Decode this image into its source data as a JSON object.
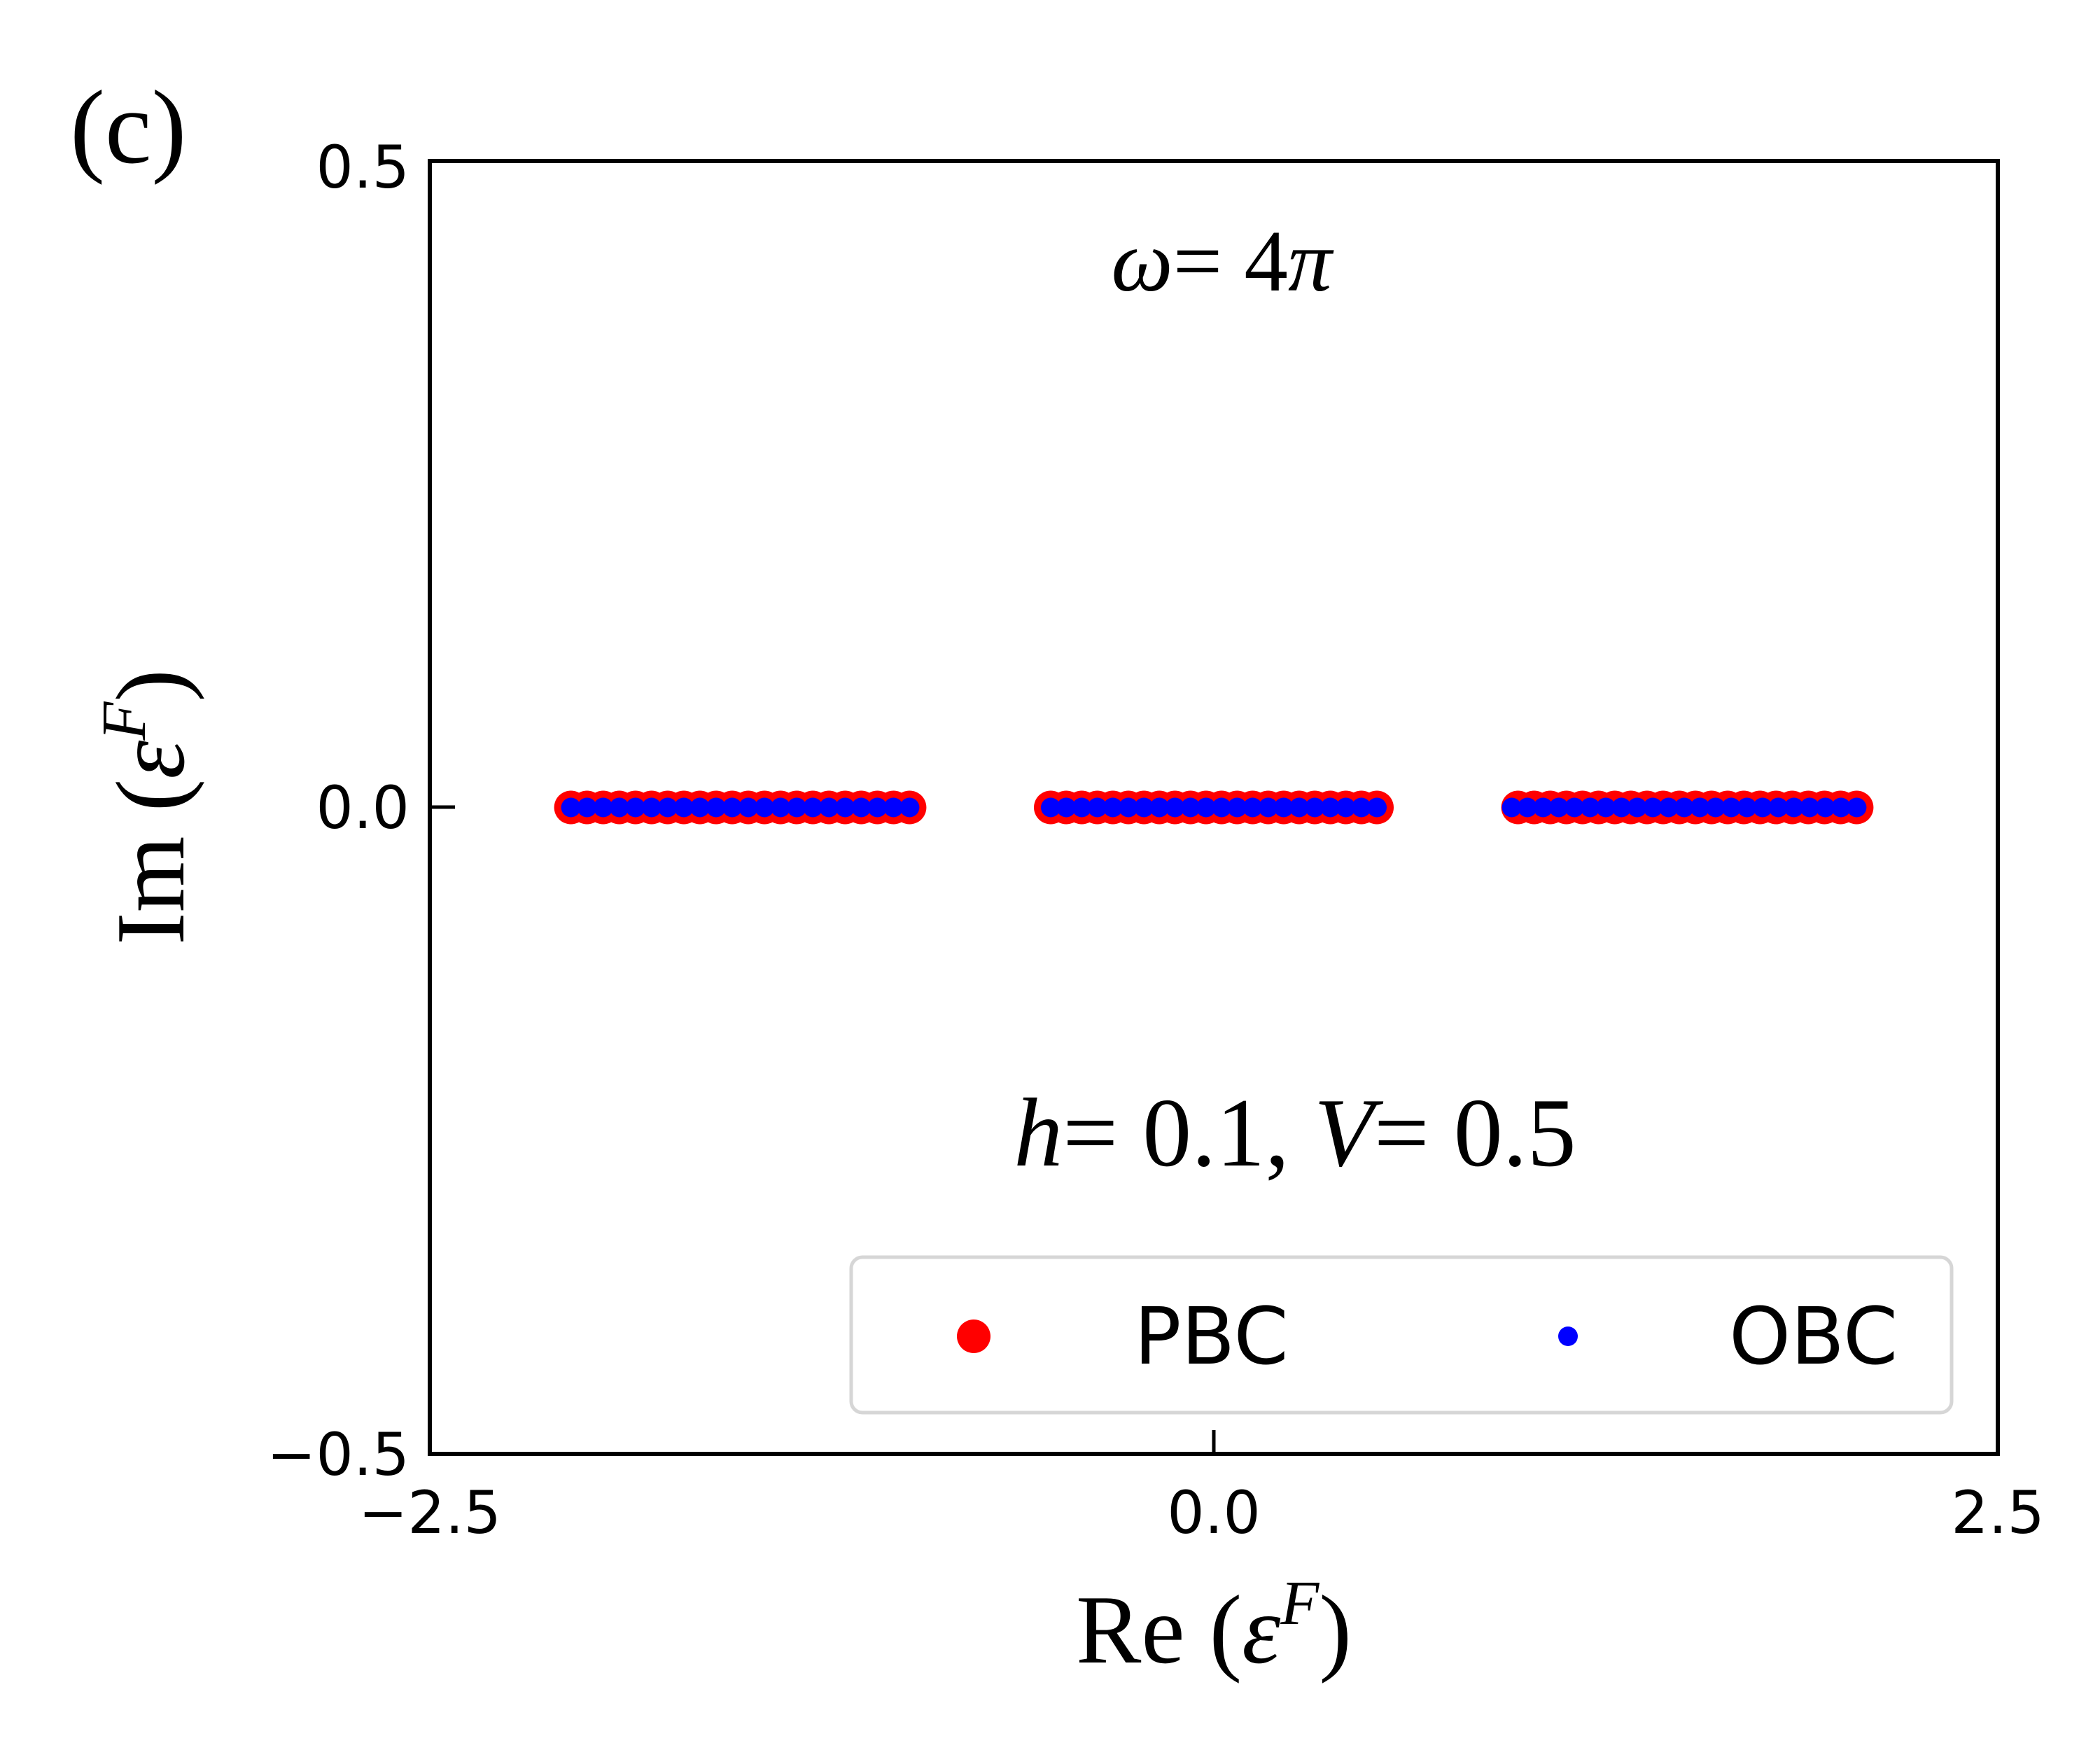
{
  "panel_label": "(c)",
  "chart_data": {
    "type": "scatter",
    "xlabel": {
      "main": "Re",
      "symbol": "ε",
      "superscript": "F"
    },
    "ylabel": {
      "main": "Im",
      "symbol": "ε",
      "superscript": "F"
    },
    "xlim": [
      -2.5,
      2.5
    ],
    "ylim": [
      -0.5,
      0.5
    ],
    "xticks": [
      -2.5,
      0.0,
      2.5
    ],
    "xtick_labels": [
      "−2.5",
      "0.0",
      "2.5"
    ],
    "yticks": [
      -0.5,
      0.0,
      0.5
    ],
    "ytick_labels": [
      "−0.5",
      "0.0",
      "0.5"
    ],
    "grid": false,
    "legend_position": "lower-right",
    "annotations": {
      "omega": {
        "var": "ω",
        "rest": "= 4",
        "tail": "π"
      },
      "params": {
        "v1": "h",
        "eq1": "= 0.1, ",
        "v2": "V",
        "eq2": "= 0.5"
      }
    },
    "series": [
      {
        "name": "PBC",
        "color": "#ff0000",
        "marker": "large-dot",
        "bands": [
          {
            "x_start": -2.05,
            "x_end": -0.97,
            "count": 22
          },
          {
            "x_start": -0.52,
            "x_end": 0.52,
            "count": 22
          },
          {
            "x_start": 0.97,
            "x_end": 2.05,
            "count": 22
          }
        ],
        "y": 0.0
      },
      {
        "name": "OBC",
        "color": "#0000ff",
        "marker": "small-dot",
        "bands": [
          {
            "x_start": -2.05,
            "x_end": -0.97,
            "count": 22
          },
          {
            "x_start": -0.52,
            "x_end": 0.52,
            "count": 22
          },
          {
            "x_start": 0.95,
            "x_end": 2.05,
            "count": 23
          }
        ],
        "y": 0.0
      }
    ]
  }
}
